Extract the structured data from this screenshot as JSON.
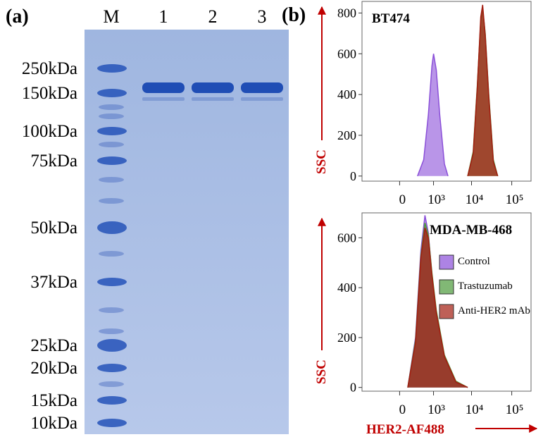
{
  "panel_a": {
    "label": "(a)",
    "lanes": [
      "M",
      "1",
      "2",
      "3"
    ],
    "markers": [
      "250kDa",
      "150kDa",
      "100kDa",
      "75kDa",
      "50kDa",
      "37kDa",
      "25kDa",
      "20kDa",
      "15kDa",
      "10kDa"
    ]
  },
  "panel_b": {
    "label": "(b)"
  },
  "chart_data": [
    {
      "type": "area",
      "title": "BT474",
      "ylabel": "SSC",
      "xscale": "logicle",
      "xlim": [
        -150,
        300000
      ],
      "ylim": [
        -25,
        850
      ],
      "xticks": [
        0,
        {
          "value": 1000,
          "label": "10³"
        },
        {
          "value": 10000,
          "label": "10⁴"
        },
        {
          "value": 100000,
          "label": "10⁵"
        }
      ],
      "yticks": [
        0,
        200,
        400,
        600,
        800
      ],
      "series": [
        {
          "name": "Control",
          "color": "#8a4fd8",
          "x": [
            300,
            500,
            700,
            900,
            1000,
            1200,
            1500,
            2000,
            2500
          ],
          "values": [
            0,
            80,
            300,
            540,
            600,
            520,
            300,
            60,
            0
          ]
        },
        {
          "name": "Trastuzumab",
          "color": "#4c9a3a",
          "x": [
            8000,
            11000,
            14000,
            17000,
            19000,
            22000,
            27000,
            35000,
            45000
          ],
          "values": [
            0,
            120,
            450,
            760,
            820,
            700,
            400,
            80,
            0
          ]
        },
        {
          "name": "Anti-HER2 mAb",
          "color": "#a31d10",
          "x": [
            8000,
            11000,
            14000,
            17000,
            19000,
            22000,
            27000,
            35000,
            45000
          ],
          "values": [
            0,
            110,
            440,
            780,
            840,
            690,
            390,
            70,
            0
          ]
        }
      ]
    },
    {
      "type": "area",
      "title": "MDA-MB-468",
      "ylabel": "SSC",
      "xlabel": "HER2-AF488",
      "xscale": "logicle",
      "xlim": [
        -150,
        300000
      ],
      "ylim": [
        -15,
        700
      ],
      "xticks": [
        0,
        {
          "value": 1000,
          "label": "10³"
        },
        {
          "value": 10000,
          "label": "10⁴"
        },
        {
          "value": 100000,
          "label": "10⁵"
        }
      ],
      "yticks": [
        0,
        200,
        400,
        600
      ],
      "legend": "upper right",
      "series": [
        {
          "name": "Control",
          "color": "#8a4fd8",
          "x": [
            100,
            250,
            400,
            550,
            700,
            900,
            1200,
            2000,
            4000,
            8000
          ],
          "values": [
            0,
            200,
            550,
            690,
            620,
            450,
            300,
            120,
            20,
            0
          ]
        },
        {
          "name": "Trastuzumab",
          "color": "#4c9a3a",
          "x": [
            100,
            250,
            400,
            550,
            700,
            900,
            1200,
            2000,
            4000,
            8000
          ],
          "values": [
            0,
            190,
            530,
            660,
            610,
            460,
            310,
            130,
            25,
            0
          ]
        },
        {
          "name": "Anti-HER2 mAb",
          "color": "#a31d10",
          "x": [
            100,
            250,
            400,
            550,
            700,
            900,
            1200,
            2000,
            4000,
            8000
          ],
          "values": [
            0,
            180,
            520,
            640,
            600,
            450,
            300,
            125,
            22,
            0
          ]
        }
      ]
    }
  ]
}
